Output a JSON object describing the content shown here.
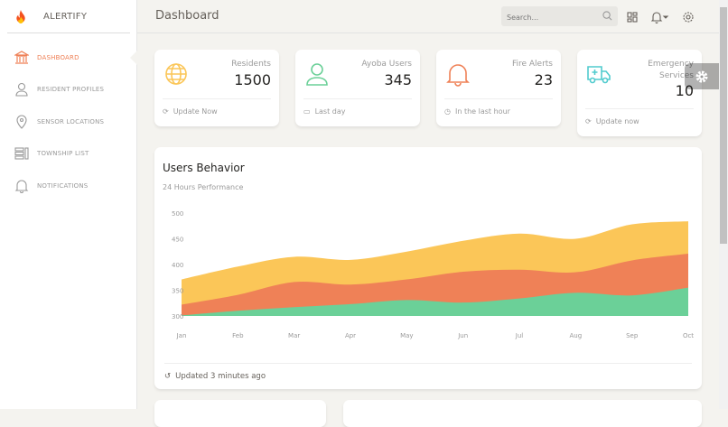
{
  "sidebar": {
    "brand": "ALERTIFY",
    "items": [
      {
        "label": "DASHBOARD",
        "icon": "bank-icon",
        "active": true
      },
      {
        "label": "RESIDENT PROFILES",
        "icon": "user-icon"
      },
      {
        "label": "SENSOR LOCATIONS",
        "icon": "map-pin-icon"
      },
      {
        "label": "TOWNSHIP LIST",
        "icon": "list-icon"
      },
      {
        "label": "NOTIFICATIONS",
        "icon": "bell-icon"
      }
    ]
  },
  "header": {
    "title": "Dashboard",
    "search_placeholder": "Search..."
  },
  "stats": [
    {
      "label": "Residents",
      "value": "1500",
      "footer": "Update Now",
      "icon": "globe-icon",
      "color": "#fbc658"
    },
    {
      "label": "Ayoba Users",
      "value": "345",
      "footer": "Last day",
      "icon": "user-icon",
      "color": "#6bd098"
    },
    {
      "label": "Fire Alerts",
      "value": "23",
      "footer": "In the last hour",
      "icon": "bell-icon",
      "color": "#ef8157"
    },
    {
      "label": "Emergency Services",
      "value": "10",
      "footer": "Update now",
      "icon": "ambulance-icon",
      "color": "#51cbce"
    }
  ],
  "chart_card": {
    "title": "Users Behavior",
    "subtitle": "24 Hours Performance",
    "footer": "Updated 3 minutes ago"
  },
  "chart_data": {
    "type": "area",
    "categories": [
      "Jan",
      "Feb",
      "Mar",
      "Apr",
      "May",
      "Jun",
      "Jul",
      "Aug",
      "Sep",
      "Oct"
    ],
    "ylim": [
      300,
      500
    ],
    "yticks": [
      300,
      350,
      400,
      450,
      500
    ],
    "grid": false,
    "series": [
      {
        "color": "#fbc658",
        "values": [
          371,
          396,
          415,
          409,
          425,
          446,
          460,
          450,
          478,
          484
        ]
      },
      {
        "color": "#ef8157",
        "values": [
          322,
          341,
          366,
          361,
          371,
          386,
          390,
          385,
          408,
          421
        ]
      },
      {
        "color": "#6bd098",
        "values": [
          301,
          310,
          317,
          323,
          331,
          326,
          334,
          345,
          340,
          355
        ]
      }
    ]
  }
}
